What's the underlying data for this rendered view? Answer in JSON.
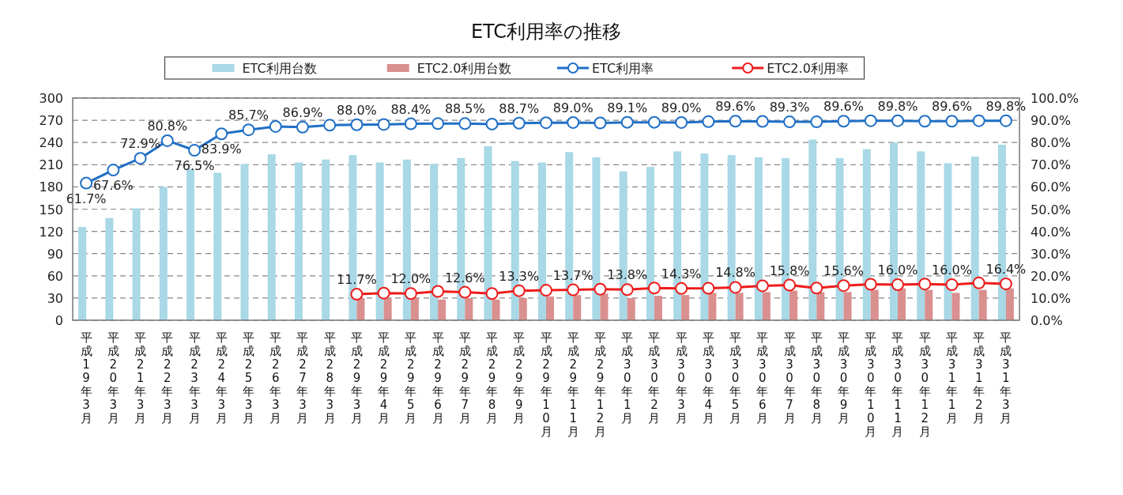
{
  "chart_data": {
    "type": "bar",
    "title": "ETC利用率の推移",
    "categories": [
      "平成19年3月",
      "平成20年3月",
      "平成21年3月",
      "平成22年3月",
      "平成23年3月",
      "平成24年3月",
      "平成25年3月",
      "平成26年3月",
      "平成27年3月",
      "平成28年3月",
      "平成29年3月",
      "平成29年4月",
      "平成29年5月",
      "平成29年6月",
      "平成29年7月",
      "平成29年8月",
      "平成29年9月",
      "平成29年10月",
      "平成29年11月",
      "平成29年12月",
      "平成30年1月",
      "平成30年2月",
      "平成30年3月",
      "平成30年4月",
      "平成30年5月",
      "平成30年6月",
      "平成30年7月",
      "平成30年8月",
      "平成30年9月",
      "平成30年10月",
      "平成30年11月",
      "平成30年12月",
      "平成31年1月",
      "平成31年2月",
      "平成31年3月"
    ],
    "series": [
      {
        "name": "ETC利用台数",
        "type": "bar",
        "color": "#a9d8e6",
        "values": [
          126,
          138,
          151,
          180,
          204,
          199,
          211,
          224,
          213,
          217,
          223,
          213,
          217,
          211,
          219,
          235,
          215,
          213,
          227,
          220,
          201,
          207,
          228,
          225,
          223,
          220,
          219,
          244,
          219,
          231,
          240,
          228,
          212,
          221,
          237
        ]
      },
      {
        "name": "ETC2.0利用台数",
        "type": "bar",
        "color": "#d9908f",
        "values": [
          null,
          null,
          null,
          null,
          null,
          null,
          null,
          null,
          null,
          null,
          30,
          30,
          30,
          28,
          30,
          28,
          30,
          32,
          34,
          36,
          30,
          33,
          34,
          37,
          37,
          38,
          40,
          38,
          38,
          41,
          43,
          41,
          37,
          41,
          43
        ]
      },
      {
        "name": "ETC利用率",
        "type": "line",
        "axis": "y2",
        "color": "#1f6fc6",
        "marker": "circle",
        "line_style": "solid",
        "values": [
          61.7,
          67.6,
          72.9,
          80.8,
          76.5,
          83.9,
          85.7,
          87.2,
          86.9,
          87.8,
          88.0,
          88.1,
          88.4,
          88.5,
          88.5,
          88.3,
          88.7,
          88.9,
          89.0,
          88.8,
          89.1,
          89.1,
          89.0,
          89.4,
          89.6,
          89.5,
          89.3,
          89.3,
          89.6,
          89.8,
          89.8,
          89.6,
          89.6,
          89.8,
          89.8
        ],
        "value_labels": [
          "61.7%",
          "67.6%",
          "72.9%",
          "80.8%",
          "76.5%",
          "83.9%",
          "85.7%",
          null,
          "86.9%",
          null,
          "88.0%",
          null,
          "88.4%",
          null,
          "88.5%",
          null,
          "88.7%",
          null,
          "89.0%",
          null,
          "89.1%",
          null,
          "89.0%",
          null,
          "89.6%",
          null,
          "89.3%",
          null,
          "89.6%",
          null,
          "89.8%",
          null,
          "89.6%",
          null,
          "89.8%"
        ]
      },
      {
        "name": "ETC2.0利用率",
        "type": "line",
        "axis": "y2",
        "color": "#ee1c1c",
        "marker": "circle",
        "line_style": "solid",
        "values": [
          null,
          null,
          null,
          null,
          null,
          null,
          null,
          null,
          null,
          null,
          11.7,
          12.2,
          12.0,
          13.0,
          12.6,
          12.0,
          13.3,
          13.5,
          13.7,
          14.0,
          13.8,
          14.5,
          14.3,
          14.4,
          14.8,
          15.5,
          15.8,
          14.5,
          15.6,
          16.2,
          16.0,
          16.3,
          16.0,
          16.8,
          16.4
        ],
        "value_labels": [
          null,
          null,
          null,
          null,
          null,
          null,
          null,
          null,
          null,
          null,
          "11.7%",
          null,
          "12.0%",
          null,
          "12.6%",
          null,
          "13.3%",
          null,
          "13.7%",
          null,
          "13.8%",
          null,
          "14.3%",
          null,
          "14.8%",
          null,
          "15.8%",
          null,
          "15.6%",
          null,
          "16.0%",
          null,
          "16.0%",
          null,
          "16.4%"
        ]
      }
    ],
    "ylim": [
      0,
      300
    ],
    "yticks": [
      0,
      30,
      60,
      90,
      120,
      150,
      180,
      210,
      240,
      270,
      300
    ],
    "y2lim": [
      0,
      100
    ],
    "y2ticks": [
      {
        "value": 0,
        "label": "0.0%"
      },
      {
        "value": 10,
        "label": "10.0%"
      },
      {
        "value": 20,
        "label": "20.0%"
      },
      {
        "value": 30,
        "label": "30.0%"
      },
      {
        "value": 40,
        "label": "40.0%"
      },
      {
        "value": 50,
        "label": "50.0%"
      },
      {
        "value": 60,
        "label": "60.0%"
      },
      {
        "value": 70,
        "label": "70.0%"
      },
      {
        "value": 80,
        "label": "80.0%"
      },
      {
        "value": 90,
        "label": "90.0%"
      },
      {
        "value": 100,
        "label": "100.0%"
      }
    ],
    "grid": "y",
    "legend": "top"
  }
}
